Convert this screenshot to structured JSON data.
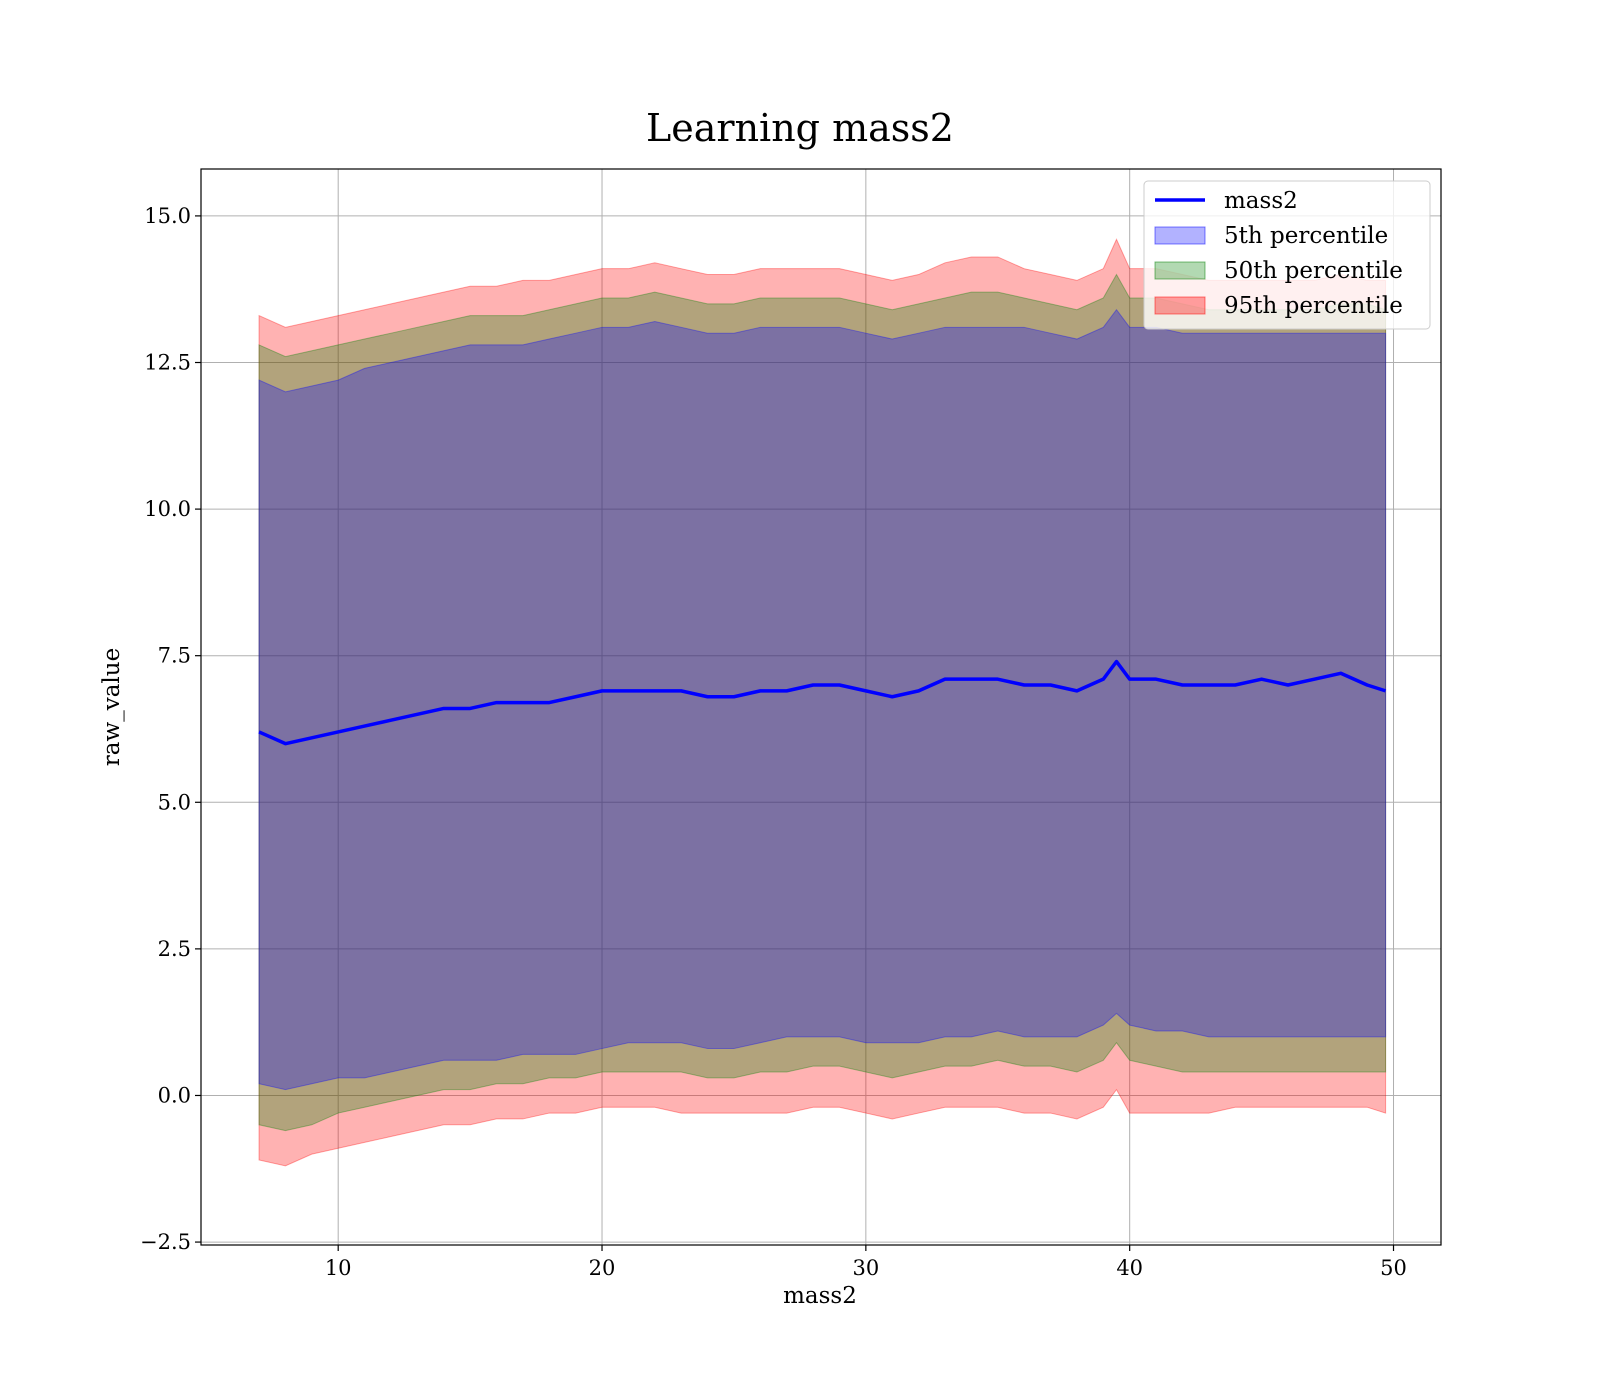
{
  "chart_data": {
    "type": "area",
    "title": "Learning mass2",
    "xlabel": "mass2",
    "ylabel": "raw_value",
    "xlim": [
      4.8,
      51.8
    ],
    "ylim": [
      -2.55,
      15.8
    ],
    "x_ticks": [
      10,
      20,
      30,
      40,
      50
    ],
    "x_tick_labels": [
      "10",
      "20",
      "30",
      "40",
      "50"
    ],
    "y_ticks": [
      -2.5,
      0,
      2.5,
      5,
      7.5,
      10,
      12.5,
      15
    ],
    "y_tick_labels": [
      "−2.5",
      "0.0",
      "2.5",
      "5.0",
      "7.5",
      "10.0",
      "12.5",
      "15.0"
    ],
    "grid": true,
    "legend_position": "top-right",
    "colors": {
      "line": "#0000ff",
      "p5": "#0000ff",
      "p50": "#008000",
      "p95": "#ff0000"
    },
    "line": {
      "name": "mass2",
      "x": [
        7.0,
        8,
        9,
        10,
        11,
        12,
        13,
        14,
        15,
        16,
        17,
        18,
        19,
        20,
        21,
        22,
        23,
        24,
        25,
        26,
        27,
        28,
        29,
        30,
        31,
        32,
        33,
        34,
        35,
        36,
        37,
        38,
        39,
        39.5,
        40,
        41,
        42,
        43,
        44,
        45,
        46,
        47,
        48,
        49,
        49.7
      ],
      "y": [
        6.2,
        6.0,
        6.1,
        6.2,
        6.3,
        6.4,
        6.5,
        6.6,
        6.6,
        6.7,
        6.7,
        6.7,
        6.8,
        6.9,
        6.9,
        6.9,
        6.9,
        6.8,
        6.8,
        6.9,
        6.9,
        7.0,
        7.0,
        6.9,
        6.8,
        6.9,
        7.1,
        7.1,
        7.1,
        7.0,
        7.0,
        6.9,
        7.1,
        7.4,
        7.1,
        7.1,
        7.0,
        7.0,
        7.0,
        7.1,
        7.0,
        7.1,
        7.2,
        7.0,
        6.9
      ]
    },
    "series": [
      {
        "name": "5th percentile",
        "x": [
          7.0,
          8,
          9,
          10,
          11,
          12,
          13,
          14,
          15,
          16,
          17,
          18,
          19,
          20,
          21,
          22,
          23,
          24,
          25,
          26,
          27,
          28,
          29,
          30,
          31,
          32,
          33,
          34,
          35,
          36,
          37,
          38,
          39,
          39.5,
          40,
          41,
          42,
          43,
          44,
          45,
          46,
          47,
          48,
          49,
          49.7
        ],
        "low": [
          0.2,
          0.1,
          0.2,
          0.3,
          0.3,
          0.4,
          0.5,
          0.6,
          0.6,
          0.6,
          0.7,
          0.7,
          0.7,
          0.8,
          0.9,
          0.9,
          0.9,
          0.8,
          0.8,
          0.9,
          1.0,
          1.0,
          1.0,
          0.9,
          0.9,
          0.9,
          1.0,
          1.0,
          1.1,
          1.0,
          1.0,
          1.0,
          1.2,
          1.4,
          1.2,
          1.1,
          1.1,
          1.0,
          1.0,
          1.0,
          1.0,
          1.0,
          1.0,
          1.0,
          1.0
        ],
        "high": [
          12.2,
          12.0,
          12.1,
          12.2,
          12.4,
          12.5,
          12.6,
          12.7,
          12.8,
          12.8,
          12.8,
          12.9,
          13.0,
          13.1,
          13.1,
          13.2,
          13.1,
          13.0,
          13.0,
          13.1,
          13.1,
          13.1,
          13.1,
          13.0,
          12.9,
          13.0,
          13.1,
          13.1,
          13.1,
          13.1,
          13.0,
          12.9,
          13.1,
          13.4,
          13.1,
          13.1,
          13.0,
          13.0,
          13.0,
          13.0,
          13.0,
          13.0,
          13.0,
          13.0,
          13.0
        ]
      },
      {
        "name": "50th percentile",
        "x": [
          7.0,
          8,
          9,
          10,
          11,
          12,
          13,
          14,
          15,
          16,
          17,
          18,
          19,
          20,
          21,
          22,
          23,
          24,
          25,
          26,
          27,
          28,
          29,
          30,
          31,
          32,
          33,
          34,
          35,
          36,
          37,
          38,
          39,
          39.5,
          40,
          41,
          42,
          43,
          44,
          45,
          46,
          47,
          48,
          49,
          49.7
        ],
        "low": [
          -0.5,
          -0.6,
          -0.5,
          -0.3,
          -0.2,
          -0.1,
          0.0,
          0.1,
          0.1,
          0.2,
          0.2,
          0.3,
          0.3,
          0.4,
          0.4,
          0.4,
          0.4,
          0.3,
          0.3,
          0.4,
          0.4,
          0.5,
          0.5,
          0.4,
          0.3,
          0.4,
          0.5,
          0.5,
          0.6,
          0.5,
          0.5,
          0.4,
          0.6,
          0.9,
          0.6,
          0.5,
          0.4,
          0.4,
          0.4,
          0.4,
          0.4,
          0.4,
          0.4,
          0.4,
          0.4
        ],
        "high": [
          12.8,
          12.6,
          12.7,
          12.8,
          12.9,
          13.0,
          13.1,
          13.2,
          13.3,
          13.3,
          13.3,
          13.4,
          13.5,
          13.6,
          13.6,
          13.7,
          13.6,
          13.5,
          13.5,
          13.6,
          13.6,
          13.6,
          13.6,
          13.5,
          13.4,
          13.5,
          13.6,
          13.7,
          13.7,
          13.6,
          13.5,
          13.4,
          13.6,
          14.0,
          13.6,
          13.6,
          13.5,
          13.4,
          13.4,
          13.4,
          13.4,
          13.4,
          13.5,
          13.5,
          13.4
        ]
      },
      {
        "name": "95th percentile",
        "x": [
          7.0,
          8,
          9,
          10,
          11,
          12,
          13,
          14,
          15,
          16,
          17,
          18,
          19,
          20,
          21,
          22,
          23,
          24,
          25,
          26,
          27,
          28,
          29,
          30,
          31,
          32,
          33,
          34,
          35,
          36,
          37,
          38,
          39,
          39.5,
          40,
          41,
          42,
          43,
          44,
          45,
          46,
          47,
          48,
          49,
          49.7
        ],
        "low": [
          -1.1,
          -1.2,
          -1.0,
          -0.9,
          -0.8,
          -0.7,
          -0.6,
          -0.5,
          -0.5,
          -0.4,
          -0.4,
          -0.3,
          -0.3,
          -0.2,
          -0.2,
          -0.2,
          -0.3,
          -0.3,
          -0.3,
          -0.3,
          -0.3,
          -0.2,
          -0.2,
          -0.3,
          -0.4,
          -0.3,
          -0.2,
          -0.2,
          -0.2,
          -0.3,
          -0.3,
          -0.4,
          -0.2,
          0.1,
          -0.3,
          -0.3,
          -0.3,
          -0.3,
          -0.2,
          -0.2,
          -0.2,
          -0.2,
          -0.2,
          -0.2,
          -0.3
        ],
        "high": [
          13.3,
          13.1,
          13.2,
          13.3,
          13.4,
          13.5,
          13.6,
          13.7,
          13.8,
          13.8,
          13.9,
          13.9,
          14.0,
          14.1,
          14.1,
          14.2,
          14.1,
          14.0,
          14.0,
          14.1,
          14.1,
          14.1,
          14.1,
          14.0,
          13.9,
          14.0,
          14.2,
          14.3,
          14.3,
          14.1,
          14.0,
          13.9,
          14.1,
          14.6,
          14.1,
          14.1,
          14.0,
          13.9,
          13.9,
          13.9,
          13.9,
          13.9,
          14.0,
          13.9,
          13.9
        ]
      }
    ]
  }
}
